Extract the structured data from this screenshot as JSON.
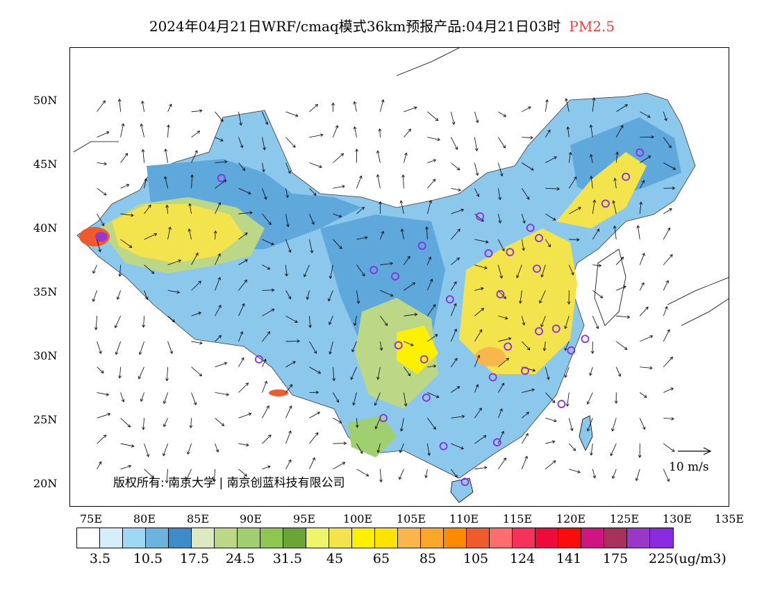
{
  "title": {
    "main": "2024年04月21日WRF/cmaq模式36km预报产品:04月21日03时",
    "product": "PM2.5",
    "product_color": "#e8413c"
  },
  "map": {
    "lat_labels": [
      "50N",
      "45N",
      "40N",
      "35N",
      "30N",
      "25N",
      "20N"
    ],
    "lon_labels": [
      "75E",
      "80E",
      "85E",
      "90E",
      "95E",
      "100E",
      "105E",
      "110E",
      "115E",
      "120E",
      "125E",
      "130E",
      "135E"
    ],
    "copyright": "版权所有: 南京大学 | 南京创蓝科技有限公司",
    "wind_reference": "10 m/s"
  },
  "colorbar": {
    "unit": "(ug/m3)",
    "labels": [
      "3.5",
      "10.5",
      "17.5",
      "24.5",
      "31.5",
      "45",
      "65",
      "85",
      "105",
      "124",
      "141",
      "175",
      "225"
    ],
    "colors": [
      "#ffffff",
      "#d6eefb",
      "#9fd8f5",
      "#6db3e0",
      "#3e8bc9",
      "#dde9c1",
      "#bcd887",
      "#9fcf6e",
      "#8ec64f",
      "#6aa535",
      "#eff56b",
      "#f3e44d",
      "#ffef00",
      "#fde300",
      "#f9b64a",
      "#f9a62a",
      "#fd8a00",
      "#ef5b2c",
      "#fe6d6d",
      "#f6325a",
      "#ee0b3b",
      "#fc0b0b",
      "#cf1580",
      "#a7315a",
      "#9938c8",
      "#8a2be2"
    ]
  },
  "stations": [
    [
      87.6,
      43.8
    ],
    [
      91.1,
      29.6
    ],
    [
      101.8,
      36.6
    ],
    [
      103.8,
      36.1
    ],
    [
      106.3,
      38.5
    ],
    [
      104.1,
      30.7
    ],
    [
      106.5,
      29.6
    ],
    [
      102.7,
      25.0
    ],
    [
      106.7,
      26.6
    ],
    [
      108.3,
      22.8
    ],
    [
      110.3,
      20.0
    ],
    [
      113.3,
      23.1
    ],
    [
      119.3,
      26.1
    ],
    [
      115.9,
      28.7
    ],
    [
      112.9,
      28.2
    ],
    [
      114.3,
      30.6
    ],
    [
      117.2,
      31.8
    ],
    [
      118.8,
      32.0
    ],
    [
      120.2,
      30.3
    ],
    [
      121.5,
      31.2
    ],
    [
      113.6,
      34.7
    ],
    [
      108.9,
      34.3
    ],
    [
      112.5,
      37.9
    ],
    [
      114.5,
      38.0
    ],
    [
      117.0,
      36.7
    ],
    [
      117.2,
      39.1
    ],
    [
      116.4,
      39.9
    ],
    [
      111.7,
      40.8
    ],
    [
      123.4,
      41.8
    ],
    [
      125.3,
      43.9
    ],
    [
      126.6,
      45.8
    ]
  ]
}
